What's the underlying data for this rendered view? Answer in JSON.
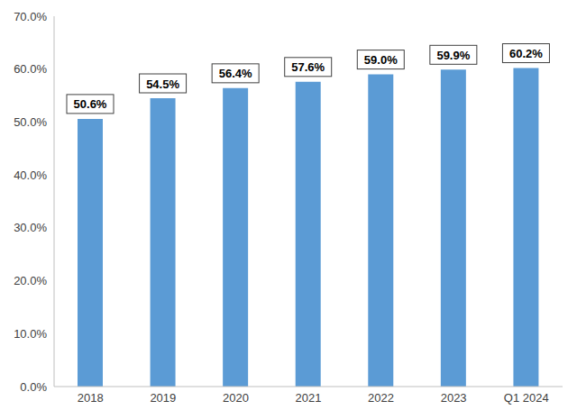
{
  "chart_data": {
    "type": "bar",
    "categories": [
      "2018",
      "2019",
      "2020",
      "2021",
      "2022",
      "2023",
      "Q1 2024"
    ],
    "values": [
      50.6,
      54.5,
      56.4,
      57.6,
      59.0,
      59.9,
      60.2
    ],
    "value_labels": [
      "50.6%",
      "54.5%",
      "56.4%",
      "57.6%",
      "59.0%",
      "59.9%",
      "60.2%"
    ],
    "color": "#5b9bd5",
    "ylim": [
      0,
      70
    ],
    "yticks": [
      {
        "value": 0,
        "label": "0.0%"
      },
      {
        "value": 10,
        "label": "10.0%"
      },
      {
        "value": 20,
        "label": "20.0%"
      },
      {
        "value": 30,
        "label": "30.0%"
      },
      {
        "value": 40,
        "label": "40.0%"
      },
      {
        "value": 50,
        "label": "50.0%"
      },
      {
        "value": 60,
        "label": "60.0%"
      },
      {
        "value": 70,
        "label": "70.0%"
      }
    ],
    "grid": false,
    "data_labels": true
  }
}
